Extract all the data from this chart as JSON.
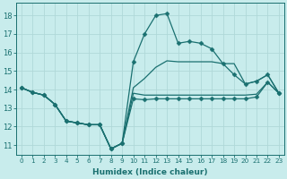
{
  "xlabel": "Humidex (Indice chaleur)",
  "bg_color": "#c8ecec",
  "grid_color": "#b0d8d8",
  "line_color": "#1a7070",
  "xlim": [
    -0.5,
    23.5
  ],
  "ylim": [
    10.5,
    18.7
  ],
  "yticks": [
    11,
    12,
    13,
    14,
    15,
    16,
    17,
    18
  ],
  "xticks": [
    0,
    1,
    2,
    3,
    4,
    5,
    6,
    7,
    8,
    9,
    10,
    11,
    12,
    13,
    14,
    15,
    16,
    17,
    18,
    19,
    20,
    21,
    22,
    23
  ],
  "series": [
    {
      "x": [
        0,
        1,
        2,
        3,
        4,
        5,
        6,
        7,
        8,
        9,
        10,
        11,
        12,
        13,
        14,
        15,
        16,
        17,
        18,
        19,
        20,
        21,
        22,
        23
      ],
      "y": [
        14.1,
        13.85,
        13.7,
        13.2,
        12.3,
        12.2,
        12.1,
        12.1,
        10.8,
        11.1,
        15.5,
        17.0,
        18.0,
        18.1,
        16.5,
        16.6,
        16.5,
        16.2,
        15.4,
        14.8,
        14.3,
        14.45,
        14.8,
        13.8
      ],
      "marker": "D",
      "markersize": 2.5,
      "lw": 0.9,
      "ls": "-"
    },
    {
      "x": [
        0,
        1,
        2,
        3,
        4,
        5,
        6,
        7,
        8,
        9,
        10,
        11,
        12,
        13,
        14,
        15,
        16,
        17,
        18,
        19,
        20,
        21,
        22,
        23
      ],
      "y": [
        14.1,
        13.85,
        13.7,
        13.2,
        12.3,
        12.2,
        12.1,
        12.1,
        10.8,
        11.1,
        14.1,
        14.6,
        15.2,
        15.55,
        15.5,
        15.5,
        15.5,
        15.5,
        15.4,
        15.4,
        14.3,
        14.45,
        14.8,
        13.8
      ],
      "marker": null,
      "markersize": 0,
      "lw": 0.9,
      "ls": "-"
    },
    {
      "x": [
        0,
        1,
        2,
        3,
        4,
        5,
        6,
        7,
        8,
        9,
        10,
        11,
        12,
        13,
        14,
        15,
        16,
        17,
        18,
        19,
        20,
        21,
        22,
        23
      ],
      "y": [
        14.1,
        13.85,
        13.7,
        13.2,
        12.3,
        12.2,
        12.1,
        12.1,
        10.8,
        11.1,
        13.8,
        13.7,
        13.7,
        13.7,
        13.7,
        13.7,
        13.7,
        13.7,
        13.7,
        13.7,
        13.7,
        13.75,
        14.4,
        13.8
      ],
      "marker": null,
      "markersize": 0,
      "lw": 0.9,
      "ls": "-"
    },
    {
      "x": [
        0,
        1,
        2,
        3,
        4,
        5,
        6,
        7,
        8,
        9,
        10,
        11,
        12,
        13,
        14,
        15,
        16,
        17,
        18,
        19,
        20,
        21,
        22,
        23
      ],
      "y": [
        14.1,
        13.85,
        13.7,
        13.2,
        12.3,
        12.2,
        12.1,
        12.1,
        10.8,
        11.1,
        13.5,
        13.45,
        13.5,
        13.5,
        13.5,
        13.5,
        13.5,
        13.5,
        13.5,
        13.5,
        13.5,
        13.6,
        14.4,
        13.8
      ],
      "marker": "D",
      "markersize": 2.5,
      "lw": 0.9,
      "ls": "-"
    }
  ]
}
